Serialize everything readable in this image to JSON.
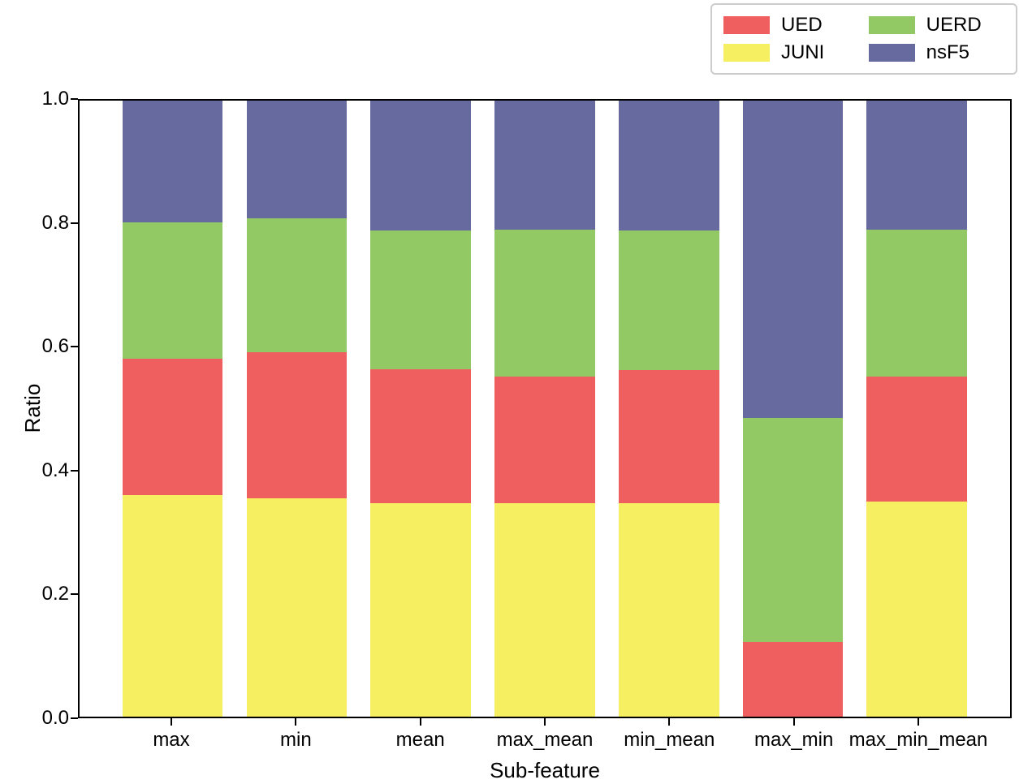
{
  "chart_data": {
    "type": "bar",
    "stacked": true,
    "title": "",
    "xlabel": "Sub-feature",
    "ylabel": "Ratio",
    "ylim": [
      0.0,
      1.0
    ],
    "yticks": [
      0.0,
      0.2,
      0.4,
      0.6,
      0.8,
      1.0
    ],
    "ytick_labels": [
      "0.0",
      "0.2",
      "0.4",
      "0.6",
      "0.8",
      "1.0"
    ],
    "grid": false,
    "categories": [
      "max",
      "min",
      "mean",
      "max_mean",
      "min_mean",
      "max_min",
      "max_min_mean"
    ],
    "stack_order_bottom_to_top": [
      "JUNI",
      "UED",
      "UERD",
      "nsF5"
    ],
    "series": [
      {
        "name": "JUNI",
        "color": "#f7ef62",
        "values": [
          0.36,
          0.354,
          0.347,
          0.347,
          0.347,
          0.0,
          0.349
        ]
      },
      {
        "name": "UED",
        "color": "#f05f60",
        "values": [
          0.221,
          0.238,
          0.217,
          0.205,
          0.215,
          0.121,
          0.203
        ]
      },
      {
        "name": "UERD",
        "color": "#92c965",
        "values": [
          0.221,
          0.217,
          0.225,
          0.238,
          0.227,
          0.364,
          0.238
        ]
      },
      {
        "name": "nsF5",
        "color": "#676a9e",
        "values": [
          0.198,
          0.191,
          0.211,
          0.21,
          0.211,
          0.515,
          0.21
        ]
      }
    ],
    "legend": {
      "position": "top-right-outside",
      "entries": [
        {
          "label": "UED",
          "color": "#f05f60"
        },
        {
          "label": "JUNI",
          "color": "#f7ef62"
        },
        {
          "label": "UERD",
          "color": "#92c965"
        },
        {
          "label": "nsF5",
          "color": "#676a9e"
        }
      ]
    }
  }
}
